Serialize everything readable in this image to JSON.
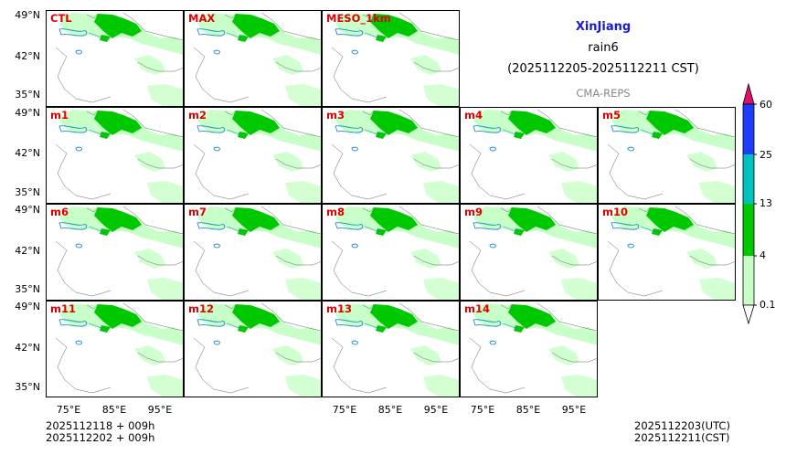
{
  "title": {
    "region": "XinJiang",
    "variable": "rain6",
    "period": "(2025112205-2025112211 CST)",
    "source": "CMA-REPS"
  },
  "colors": {
    "title": "#1a1ad0",
    "panel_label": "#e00000",
    "source": "#888888"
  },
  "panels": {
    "row1": [
      "CTL",
      "MAX",
      "MESO_1km"
    ],
    "row2": [
      "m1",
      "m2",
      "m3",
      "m4",
      "m5"
    ],
    "row3": [
      "m6",
      "m7",
      "m8",
      "m9",
      "m10"
    ],
    "row4": [
      "m11",
      "m12",
      "m13",
      "m14"
    ]
  },
  "lat_labels": [
    "49°N",
    "42°N",
    "35°N"
  ],
  "lon_labels": [
    "75°E",
    "85°E",
    "95°E"
  ],
  "colorbar": {
    "ticks": [
      "60",
      "25",
      "13",
      "4",
      "0.1"
    ],
    "colors": [
      "#1e3cff",
      "#00c0c0",
      "#00c800",
      "#c8ffc8"
    ],
    "over_color": "#e0106c"
  },
  "init_times": {
    "utc_line": "2025112118  +  009h",
    "cst_line": "2025112202  +  009h"
  },
  "valid_times": {
    "utc": "2025112203(UTC)",
    "cst": "2025112211(CST)"
  }
}
